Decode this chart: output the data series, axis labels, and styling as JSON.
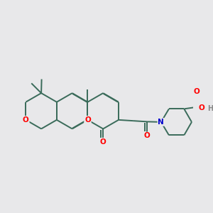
{
  "bg_color": "#e8e8ea",
  "bond_color": "#3a6b5a",
  "bond_width": 1.4,
  "dbo": 0.018,
  "atom_colors": {
    "O": "#ff0000",
    "N": "#0000cc",
    "H": "#888888"
  },
  "figsize": [
    3.0,
    3.0
  ],
  "dpi": 100
}
